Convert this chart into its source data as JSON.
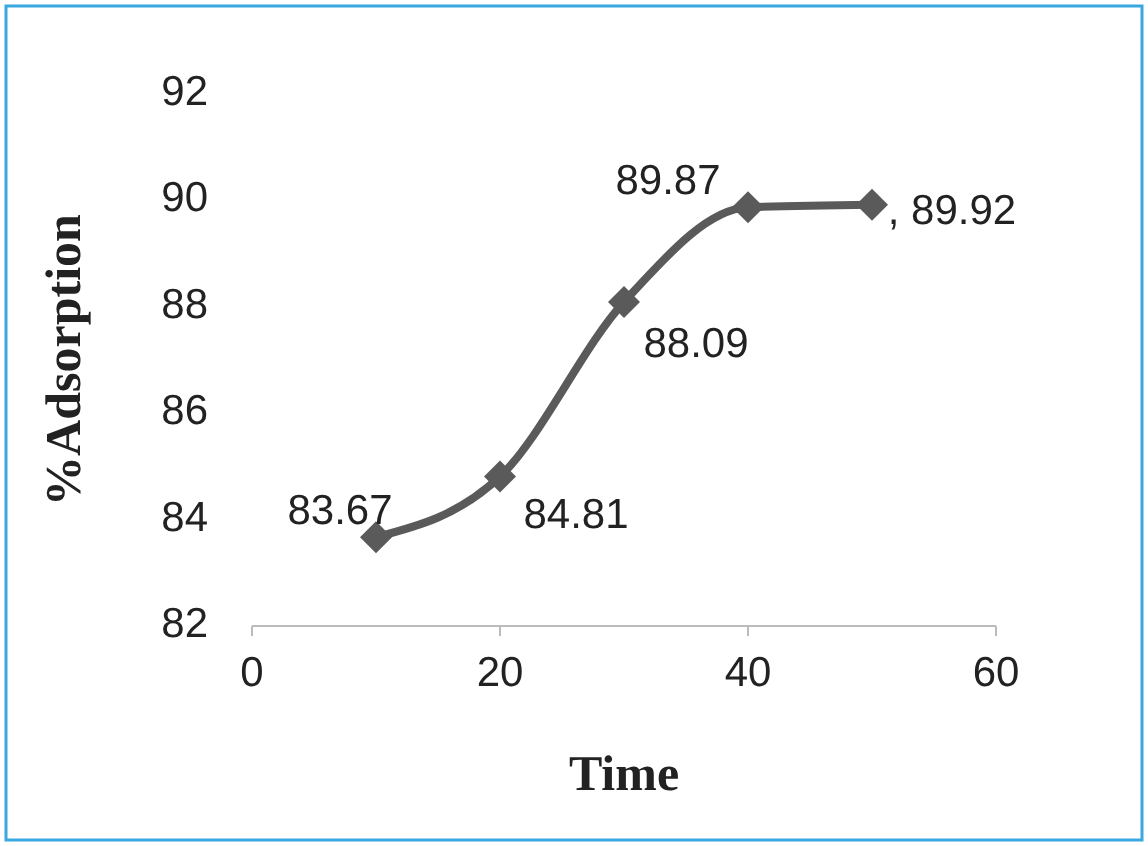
{
  "chart_data": {
    "type": "line",
    "xlabel": "Time",
    "ylabel": "%Adsorption",
    "x": [
      10,
      20,
      30,
      40,
      50
    ],
    "series": [
      {
        "color": "#5a5a5a",
        "values": [
          83.67,
          84.81,
          88.09,
          89.87,
          89.92
        ],
        "value_labels": [
          "83.67",
          "84.81",
          "88.09",
          "89.87",
          ", 89.92"
        ]
      }
    ],
    "xlim": [
      0,
      60
    ],
    "xticks": [
      0,
      20,
      40,
      60
    ],
    "ylim": [
      82,
      92
    ],
    "yticks": [
      82,
      84,
      86,
      88,
      90,
      92
    ],
    "grid": false,
    "marker": "diamond",
    "line_style": "solid"
  }
}
